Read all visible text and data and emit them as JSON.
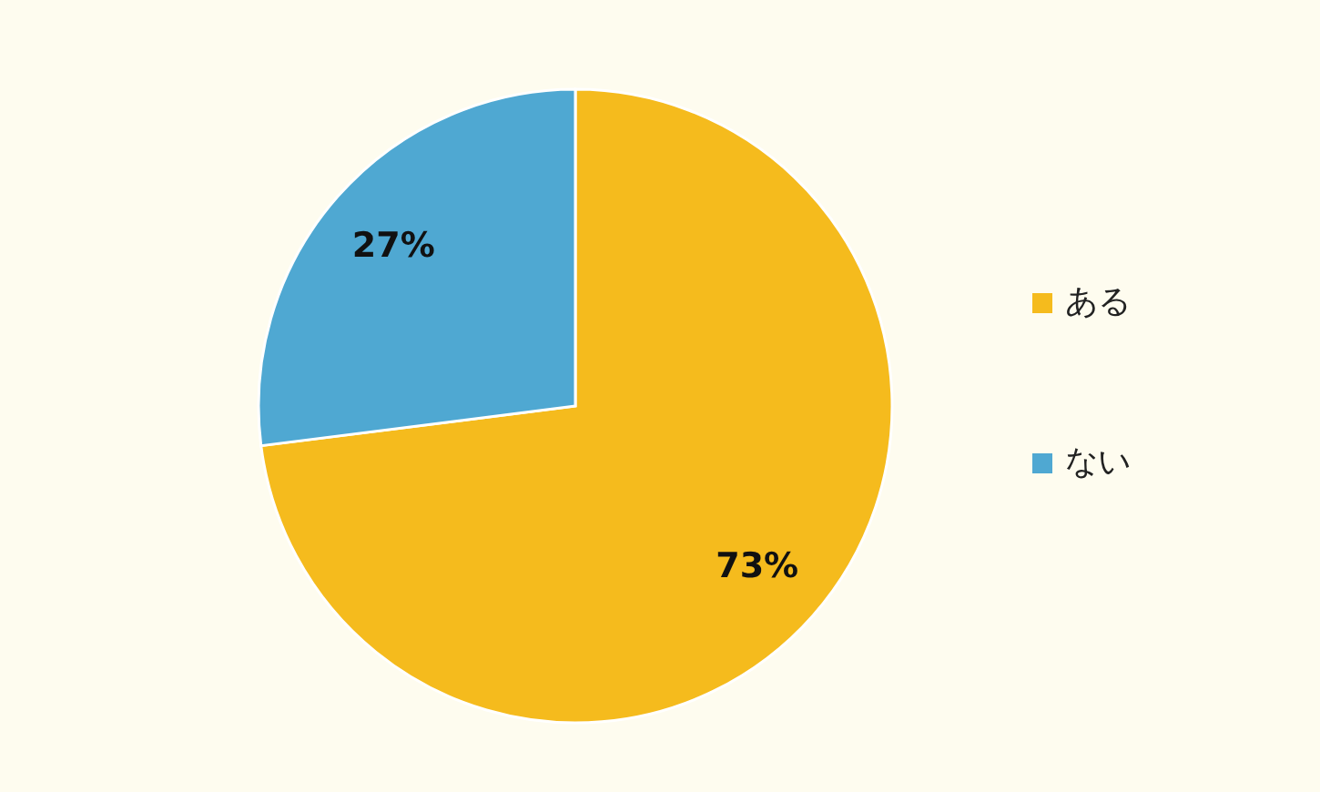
{
  "chart_data": {
    "type": "pie",
    "categories": [
      "ある",
      "ない"
    ],
    "values": [
      73,
      27
    ],
    "colors": [
      "#f5bb1d",
      "#4fa8d2"
    ],
    "value_labels": [
      "73%",
      "27%"
    ],
    "legend": "right"
  }
}
